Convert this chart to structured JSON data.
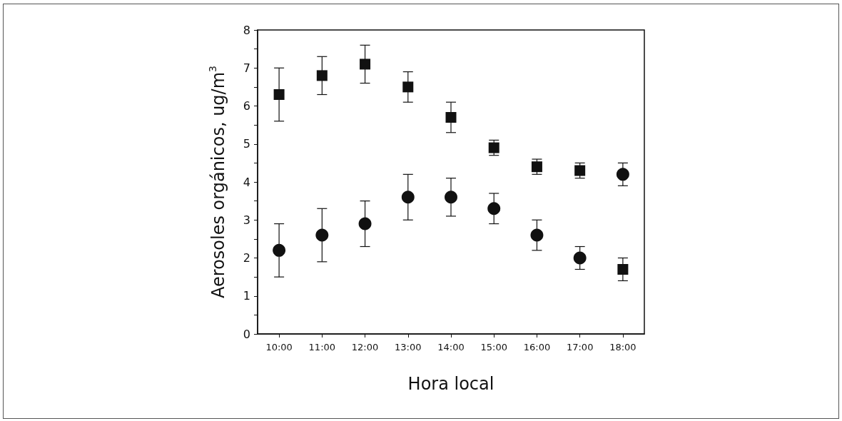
{
  "chart_data": {
    "type": "scatter",
    "xlabel": "Hora local",
    "ylabel": "Aerosoles orgánicos, ug/m$^{3}$",
    "categories": [
      "10:00",
      "11:00",
      "12:00",
      "13:00",
      "14:00",
      "15:00",
      "16:00",
      "17:00",
      "18:00"
    ],
    "ylim": [
      0,
      8
    ],
    "yticks": [
      0,
      1,
      2,
      3,
      4,
      5,
      6,
      7,
      8
    ],
    "grid": false,
    "series": [
      {
        "color": "#111111",
        "marker": "square",
        "values": [
          6.3,
          6.8,
          7.1,
          6.5,
          5.7,
          4.9,
          4.4,
          4.3,
          1.7
        ],
        "errors": [
          [
            5.6,
            7.0
          ],
          [
            6.3,
            7.3
          ],
          [
            6.6,
            7.6
          ],
          [
            6.1,
            6.9
          ],
          [
            5.3,
            6.1
          ],
          [
            4.7,
            5.1
          ],
          [
            4.2,
            4.6
          ],
          [
            4.1,
            4.5
          ],
          [
            1.4,
            2.0
          ]
        ]
      },
      {
        "color": "#111111",
        "marker": "circle",
        "values": [
          2.2,
          2.6,
          2.9,
          3.6,
          3.6,
          3.3,
          2.6,
          2.0,
          4.2
        ],
        "errors": [
          [
            1.5,
            2.9
          ],
          [
            1.9,
            3.3
          ],
          [
            2.3,
            3.5
          ],
          [
            3.0,
            4.2
          ],
          [
            3.1,
            4.1
          ],
          [
            2.9,
            3.7
          ],
          [
            2.2,
            3.0
          ],
          [
            1.7,
            2.3
          ],
          [
            3.9,
            4.5
          ]
        ]
      }
    ]
  }
}
